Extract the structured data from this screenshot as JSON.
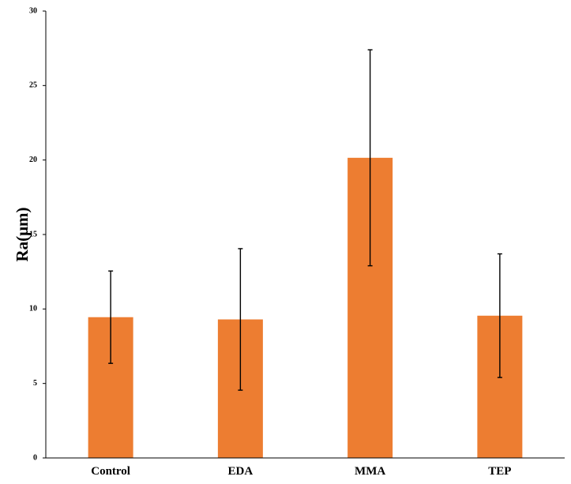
{
  "chart_data": {
    "type": "bar",
    "categories": [
      "Control",
      "EDA",
      "MMA",
      "TEP"
    ],
    "values": [
      9.45,
      9.3,
      20.15,
      9.55
    ],
    "error": [
      3.1,
      4.75,
      7.25,
      4.15
    ],
    "ylabel": "Ra(μm)",
    "xlabel": "",
    "ylim": [
      0,
      30
    ],
    "yticks": [
      "0",
      "5",
      "10",
      "15",
      "20",
      "25",
      "30"
    ],
    "grid": false,
    "legend": "none",
    "bar_color": "#ED7D31",
    "error_bar_color": "#000000"
  }
}
